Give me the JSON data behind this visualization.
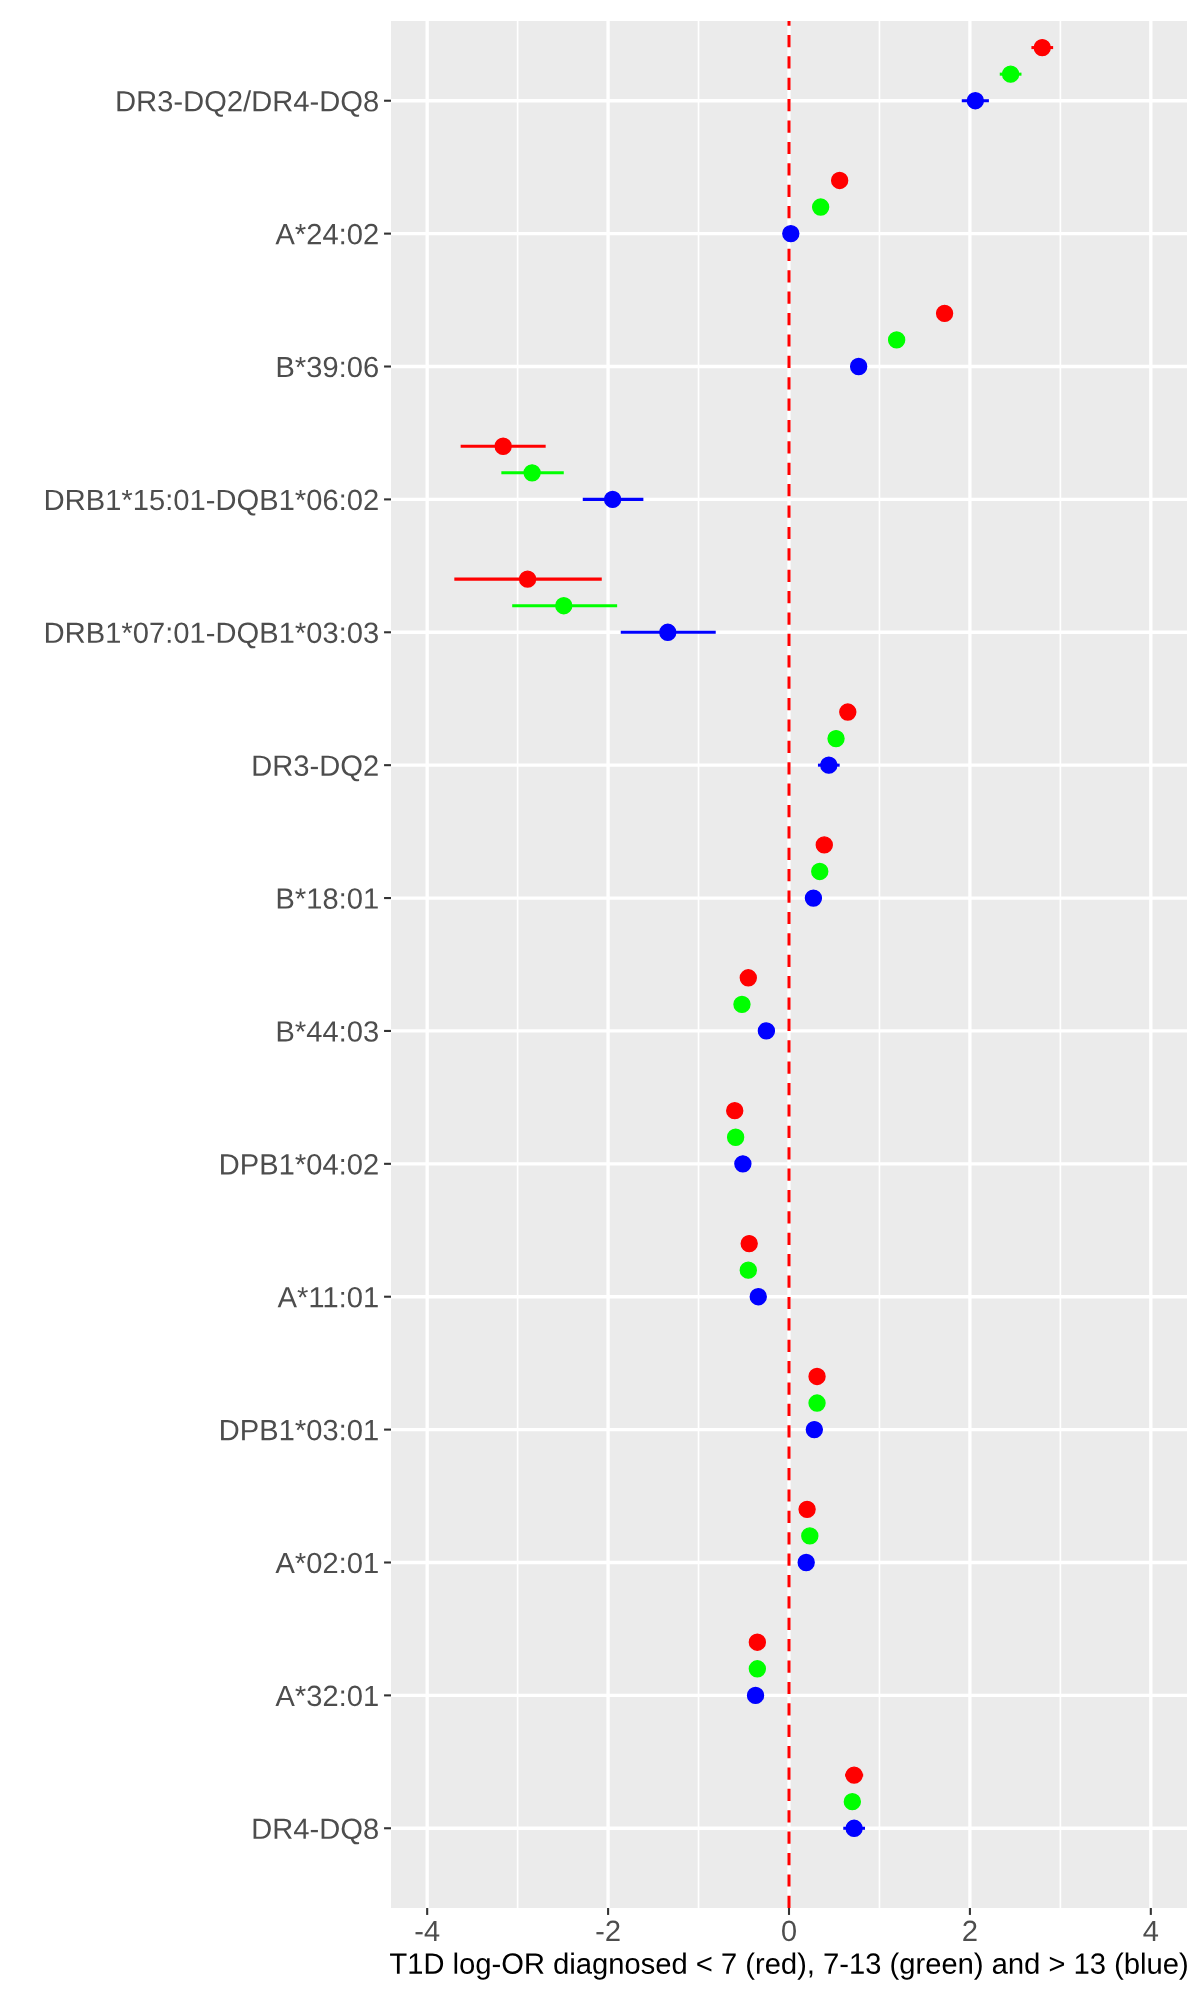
{
  "chart_data": {
    "type": "scatter",
    "orientation": "horizontal",
    "xlabel": "T1D log-OR diagnosed < 7 (red), 7-13 (green) and > 13 (blue)",
    "categories": [
      "DR3-DQ2/DR4-DQ8",
      "A*24:02",
      "B*39:06",
      "DRB1*15:01-DQB1*06:02",
      "DRB1*07:01-DQB1*03:03",
      "DR3-DQ2",
      "B*18:01",
      "B*44:03",
      "DPB1*04:02",
      "A*11:01",
      "DPB1*03:01",
      "A*02:01",
      "A*32:01",
      "DR4-DQ8"
    ],
    "series": [
      {
        "color": "#ff0000",
        "values": [
          2.8,
          0.56,
          1.72,
          -3.16,
          -2.89,
          0.65,
          0.39,
          -0.45,
          -0.6,
          -0.44,
          0.31,
          0.2,
          -0.35,
          0.72
        ],
        "errors": [
          0.12,
          null,
          null,
          [
            -3.63,
            -2.69
          ],
          [
            -3.7,
            -2.07
          ],
          null,
          null,
          null,
          null,
          null,
          null,
          null,
          null,
          0.1
        ]
      },
      {
        "color": "#00ff00",
        "values": [
          2.45,
          0.35,
          1.19,
          -2.84,
          -2.49,
          0.52,
          0.34,
          -0.52,
          -0.59,
          -0.45,
          0.31,
          0.23,
          -0.35,
          0.7
        ],
        "errors": [
          0.12,
          null,
          null,
          [
            -3.18,
            -2.49
          ],
          [
            -3.06,
            -1.9
          ],
          null,
          null,
          null,
          null,
          null,
          null,
          null,
          null,
          null
        ]
      },
      {
        "color": "#0000ff",
        "values": [
          2.06,
          0.02,
          0.77,
          -1.95,
          -1.34,
          0.44,
          0.27,
          -0.25,
          -0.51,
          -0.34,
          0.28,
          0.19,
          -0.37,
          0.72
        ],
        "errors": [
          0.15,
          null,
          null,
          [
            -2.28,
            -1.61
          ],
          [
            -1.86,
            -0.81
          ],
          0.12,
          null,
          null,
          null,
          null,
          null,
          null,
          null,
          0.12
        ]
      }
    ],
    "xlim": [
      -4.4,
      4.4
    ],
    "xticks": [
      -4,
      -2,
      0,
      2,
      4
    ],
    "ref_lines": [
      {
        "axis": "x",
        "value": 0,
        "color": "#ff0000",
        "line_style": "dashed"
      }
    ],
    "grid": true,
    "marker": "circle"
  }
}
